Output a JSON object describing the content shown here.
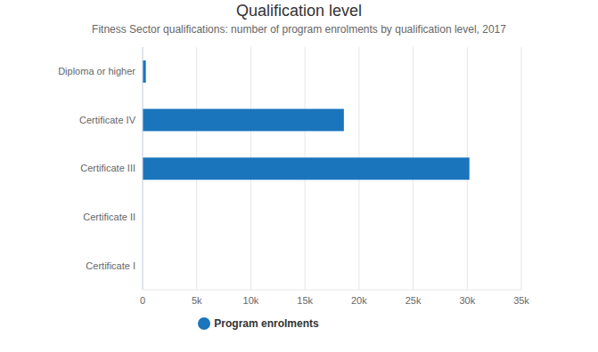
{
  "chart_data": {
    "type": "bar",
    "orientation": "horizontal",
    "title": "Qualification level",
    "subtitle": "Fitness Sector qualifications: number of program enrolments by qualification level, 2017",
    "categories": [
      "Diploma or higher",
      "Certificate IV",
      "Certificate III",
      "Certificate II",
      "Certificate I"
    ],
    "series": [
      {
        "name": "Program enrolments",
        "color": "#1b75bc",
        "values": [
          300,
          18600,
          30200,
          0,
          0
        ]
      }
    ],
    "xlim": [
      0,
      35000
    ],
    "xticks": [
      0,
      {
        "value": 5000,
        "label": "5k"
      },
      {
        "value": 10000,
        "label": "10k"
      },
      {
        "value": 15000,
        "label": "15k"
      },
      {
        "value": 20000,
        "label": "20k"
      },
      {
        "value": 25000,
        "label": "25k"
      },
      {
        "value": 30000,
        "label": "30k"
      },
      {
        "value": 35000,
        "label": "35k"
      }
    ],
    "grid": true,
    "legend": "bottom"
  }
}
